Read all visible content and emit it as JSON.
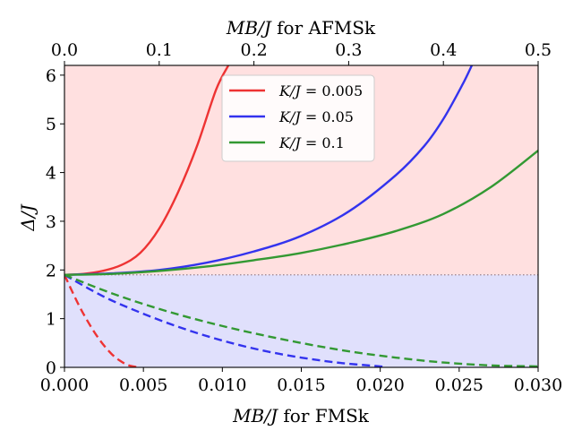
{
  "chart_data": {
    "type": "line",
    "bottom_axis": {
      "label_math": "MB/J",
      "label_text": " for FMSk",
      "range": [
        0,
        0.03
      ],
      "ticks": [
        "0.000",
        "0.005",
        "0.010",
        "0.015",
        "0.020",
        "0.025",
        "0.030"
      ]
    },
    "top_axis": {
      "label_math": "MB/J",
      "label_text": " for AFMSk",
      "range": [
        0,
        0.5
      ],
      "ticks": [
        "0.0",
        "0.1",
        "0.2",
        "0.3",
        "0.4",
        "0.5"
      ]
    },
    "y_axis": {
      "label": "Δ/J",
      "range": [
        0,
        6.2
      ],
      "ticks": [
        "0",
        "1",
        "2",
        "3",
        "4",
        "5",
        "6"
      ]
    },
    "threshold": 1.9,
    "regions": [
      {
        "name": "upper",
        "from": 1.9,
        "to": 6.2,
        "color": "#ffe0e0"
      },
      {
        "name": "lower",
        "from": 0,
        "to": 1.9,
        "color": "#e0e0fc"
      }
    ],
    "legend_position": "upper-center",
    "series": [
      {
        "name": "K/J = 0.005",
        "math": "K/J",
        "value": "0.005",
        "color": "#ee3333",
        "solid": {
          "axis": "top",
          "x": [
            0,
            0.02,
            0.04,
            0.06,
            0.08,
            0.1,
            0.12,
            0.14,
            0.16,
            0.173
          ],
          "y": [
            1.9,
            1.92,
            1.98,
            2.1,
            2.35,
            2.85,
            3.6,
            4.55,
            5.7,
            6.2
          ]
        },
        "dashed": {
          "axis": "bottom",
          "x": [
            0,
            0.0005,
            0.001,
            0.0015,
            0.002,
            0.0025,
            0.003,
            0.0035,
            0.004,
            0.0045,
            0.0048
          ],
          "y": [
            1.9,
            1.55,
            1.22,
            0.93,
            0.67,
            0.45,
            0.27,
            0.14,
            0.05,
            0.01,
            0.0
          ]
        }
      },
      {
        "name": "K/J = 0.05",
        "math": "K/J",
        "value": "0.05",
        "color": "#3333ee",
        "solid": {
          "axis": "top",
          "x": [
            0,
            0.05,
            0.1,
            0.15,
            0.2,
            0.25,
            0.3,
            0.35,
            0.38,
            0.4,
            0.42,
            0.43
          ],
          "y": [
            1.9,
            1.93,
            2.0,
            2.15,
            2.38,
            2.7,
            3.2,
            3.95,
            4.55,
            5.1,
            5.8,
            6.2
          ]
        },
        "dashed": {
          "axis": "bottom",
          "x": [
            0,
            0.0025,
            0.005,
            0.0075,
            0.01,
            0.0125,
            0.015,
            0.0175,
            0.02,
            0.0203
          ],
          "y": [
            1.9,
            1.45,
            1.1,
            0.8,
            0.55,
            0.35,
            0.2,
            0.09,
            0.02,
            0.0
          ]
        }
      },
      {
        "name": "K/J = 0.1",
        "math": "K/J",
        "value": "0.1",
        "color": "#339933",
        "solid": {
          "axis": "top",
          "x": [
            0,
            0.05,
            0.1,
            0.15,
            0.2,
            0.25,
            0.3,
            0.35,
            0.4,
            0.45,
            0.5
          ],
          "y": [
            1.9,
            1.92,
            1.98,
            2.07,
            2.2,
            2.35,
            2.55,
            2.8,
            3.15,
            3.7,
            4.45
          ]
        },
        "dashed": {
          "axis": "bottom",
          "x": [
            0,
            0.003,
            0.006,
            0.009,
            0.012,
            0.015,
            0.018,
            0.021,
            0.024,
            0.027,
            0.03
          ],
          "y": [
            1.9,
            1.52,
            1.2,
            0.93,
            0.7,
            0.5,
            0.33,
            0.2,
            0.1,
            0.04,
            0.02
          ]
        }
      }
    ]
  }
}
